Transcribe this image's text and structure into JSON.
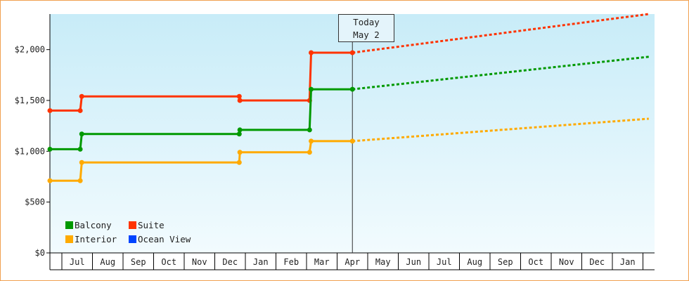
{
  "chart_data": {
    "type": "line",
    "y_ticks": [
      {
        "value": 0,
        "label": "$0"
      },
      {
        "value": 500,
        "label": "$500"
      },
      {
        "value": 1000,
        "label": "$1,000"
      },
      {
        "value": 1500,
        "label": "$1,500"
      },
      {
        "value": 2000,
        "label": "$2,000"
      }
    ],
    "ylim": [
      0,
      2350
    ],
    "x_months": [
      "",
      "Jul",
      "Aug",
      "Sep",
      "Oct",
      "Nov",
      "Dec",
      "Jan",
      "Feb",
      "Mar",
      "Apr",
      "May",
      "Jun",
      "Jul",
      "Aug",
      "Sep",
      "Oct",
      "Nov",
      "Dec",
      "Jan",
      ""
    ],
    "today_index": 10.5,
    "today_label_line1": "Today",
    "today_label_line2": "May 2",
    "series": [
      {
        "name": "Suite",
        "color": "#ff3300",
        "points": [
          [
            0,
            1400
          ],
          [
            1.6,
            1400
          ],
          [
            1.65,
            1540
          ],
          [
            6.8,
            1540
          ],
          [
            6.82,
            1500
          ],
          [
            9.1,
            1500
          ],
          [
            9.15,
            1970
          ],
          [
            10.5,
            1970
          ]
        ],
        "forecast": [
          [
            10.5,
            1970
          ],
          [
            20.5,
            2350
          ]
        ]
      },
      {
        "name": "Balcony",
        "color": "#009900",
        "points": [
          [
            0,
            1020
          ],
          [
            1.6,
            1020
          ],
          [
            1.65,
            1170
          ],
          [
            6.8,
            1170
          ],
          [
            6.82,
            1210
          ],
          [
            9.1,
            1210
          ],
          [
            9.15,
            1610
          ],
          [
            10.5,
            1610
          ]
        ],
        "forecast": [
          [
            10.5,
            1610
          ],
          [
            20.5,
            1930
          ]
        ]
      },
      {
        "name": "Interior",
        "color": "#ffaa00",
        "points": [
          [
            0,
            710
          ],
          [
            1.6,
            710
          ],
          [
            1.65,
            890
          ],
          [
            6.8,
            890
          ],
          [
            6.82,
            990
          ],
          [
            9.1,
            990
          ],
          [
            9.15,
            1100
          ],
          [
            10.5,
            1100
          ]
        ],
        "forecast": [
          [
            10.5,
            1100
          ],
          [
            20.5,
            1320
          ]
        ]
      },
      {
        "name": "Ocean View",
        "color": "#0044ff",
        "points": [],
        "forecast": []
      }
    ],
    "legend": [
      {
        "name": "Balcony",
        "color": "#009900"
      },
      {
        "name": "Suite",
        "color": "#ff3300"
      },
      {
        "name": "Interior",
        "color": "#ffaa00"
      },
      {
        "name": "Ocean View",
        "color": "#0044ff"
      }
    ],
    "legend_position": "bottom-left",
    "grid": false
  }
}
